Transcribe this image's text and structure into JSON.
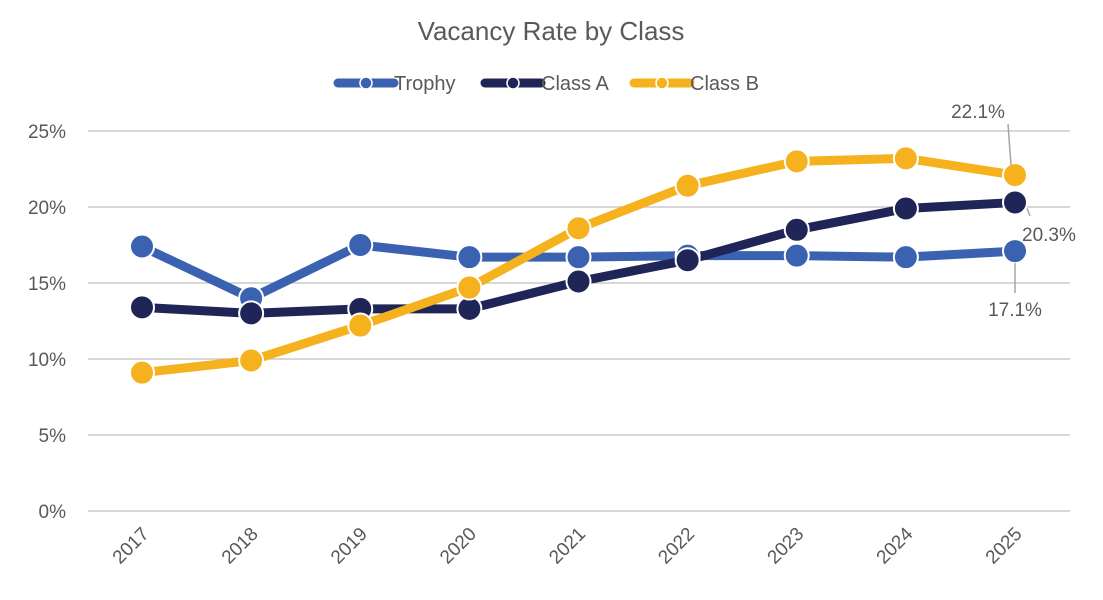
{
  "chart_data": {
    "type": "line",
    "title": "Vacancy Rate by Class",
    "xlabel": "",
    "ylabel": "",
    "categories": [
      "2017",
      "2018",
      "2019",
      "2020",
      "2021",
      "2022",
      "2023",
      "2024",
      "2025"
    ],
    "ylim": [
      0,
      25
    ],
    "yticks": [
      "0%",
      "5%",
      "10%",
      "15%",
      "20%",
      "25%"
    ],
    "ytick_values": [
      0,
      5,
      10,
      15,
      20,
      25
    ],
    "grid": true,
    "legend_position": "top",
    "series": [
      {
        "name": "Trophy",
        "color": "#3A62B0",
        "values": [
          17.4,
          14.0,
          17.5,
          16.7,
          16.7,
          16.8,
          16.8,
          16.7,
          17.1
        ]
      },
      {
        "name": "Class A",
        "color": "#1F2556",
        "values": [
          13.4,
          13.0,
          13.3,
          13.3,
          15.1,
          16.5,
          18.5,
          19.9,
          20.3
        ]
      },
      {
        "name": "Class B",
        "color": "#F5B21E",
        "values": [
          9.1,
          9.9,
          12.2,
          14.7,
          18.6,
          21.4,
          23.0,
          23.2,
          22.1
        ]
      }
    ],
    "annotations": [
      {
        "series": "Class B",
        "category": "2025",
        "text": "22.1%"
      },
      {
        "series": "Class A",
        "category": "2025",
        "text": "20.3%"
      },
      {
        "series": "Trophy",
        "category": "2025",
        "text": "17.1%"
      }
    ]
  }
}
